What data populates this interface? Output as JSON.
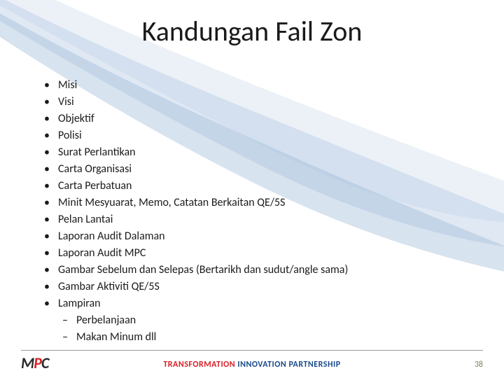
{
  "title": "Kandungan Fail Zon",
  "bullets": [
    {
      "label": "Misi"
    },
    {
      "label": "Visi"
    },
    {
      "label": "Objektif"
    },
    {
      "label": "Polisi"
    },
    {
      "label": "Surat Perlantikan"
    },
    {
      "label": "Carta Organisasi"
    },
    {
      "label": "Carta Perbatuan"
    },
    {
      "label": "Minit Mesyuarat, Memo, Catatan Berkaitan QE/5S"
    },
    {
      "label": "Pelan Lantai"
    },
    {
      "label": "Laporan Audit Dalaman"
    },
    {
      "label": "Laporan Audit MPC"
    },
    {
      "label": "Gambar Sebelum dan Selepas (Bertarikh dan sudut/angle sama)"
    },
    {
      "label": "Gambar Aktiviti QE/5S"
    },
    {
      "label": "Lampiran",
      "sub": [
        {
          "label": "Perbelanjaan"
        },
        {
          "label": "Makan Minum dll"
        }
      ]
    }
  ],
  "footer": {
    "logo": {
      "m": "M",
      "p": "P",
      "c": "C"
    },
    "tagline1": "TRANSFORMATION ",
    "tagline2": "INNOVATION PARTNERSHIP",
    "page": "38"
  },
  "style": {
    "title_fontsize": 40,
    "bullet_fontsize": 16,
    "title_color": "#1a1a1a",
    "text_color": "#1a1a1a",
    "swoosh_color1": "#b0c8e0",
    "swoosh_color2": "#d0e0f0",
    "tagline_red": "#d92027",
    "tagline_blue": "#1a4a8a",
    "pagenum_color": "#7a8a5a",
    "background": "#ffffff"
  }
}
